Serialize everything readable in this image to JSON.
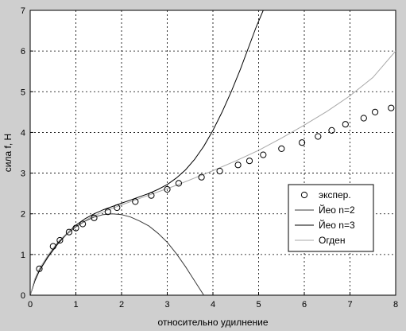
{
  "chart_data": {
    "type": "line",
    "xlabel": "относительно удилнение",
    "ylabel": "сила f, Н",
    "xlim": [
      0,
      8
    ],
    "ylim": [
      0,
      7
    ],
    "xticks": [
      "0",
      "1",
      "2",
      "3",
      "4",
      "5",
      "6",
      "7",
      "8"
    ],
    "yticks": [
      "0",
      "1",
      "2",
      "3",
      "4",
      "5",
      "6",
      "7"
    ],
    "grid": true,
    "legend_position": "lower-right",
    "series": [
      {
        "name": "экспер.",
        "kind": "markers",
        "marker": "circle",
        "color": "#000000",
        "x": [
          0.2,
          0.5,
          0.65,
          0.85,
          1.0,
          1.15,
          1.4,
          1.7,
          1.9,
          2.3,
          2.65,
          3.0,
          3.25,
          3.75,
          4.15,
          4.55,
          4.8,
          5.1,
          5.5,
          5.95,
          6.3,
          6.6,
          6.9,
          7.3,
          7.55,
          7.9
        ],
        "y": [
          0.65,
          1.2,
          1.35,
          1.55,
          1.65,
          1.75,
          1.9,
          2.05,
          2.15,
          2.3,
          2.45,
          2.6,
          2.75,
          2.9,
          3.05,
          3.2,
          3.3,
          3.45,
          3.6,
          3.75,
          3.9,
          4.05,
          4.2,
          4.35,
          4.5,
          4.6
        ]
      },
      {
        "name": "Йео n=2",
        "kind": "line",
        "color": "#3a3a3a",
        "x": [
          0,
          0.1,
          0.2,
          0.4,
          0.6,
          0.8,
          1.0,
          1.2,
          1.4,
          1.6,
          1.8,
          2.0,
          2.2,
          2.4,
          2.6,
          2.8,
          3.0,
          3.2,
          3.4,
          3.6,
          3.8
        ],
        "y": [
          0,
          0.35,
          0.6,
          0.95,
          1.25,
          1.5,
          1.68,
          1.82,
          1.92,
          1.98,
          2.0,
          1.98,
          1.92,
          1.82,
          1.7,
          1.52,
          1.3,
          1.02,
          0.7,
          0.35,
          0.0
        ]
      },
      {
        "name": "Йео n=3",
        "kind": "line",
        "color": "#000000",
        "x": [
          0,
          0.1,
          0.2,
          0.4,
          0.6,
          0.8,
          1.0,
          1.2,
          1.4,
          1.6,
          1.8,
          2.0,
          2.2,
          2.4,
          2.6,
          2.8,
          3.0,
          3.2,
          3.4,
          3.6,
          3.8,
          4.0,
          4.2,
          4.4,
          4.6,
          4.8,
          4.95,
          5.1
        ],
        "y": [
          0,
          0.35,
          0.6,
          0.97,
          1.27,
          1.52,
          1.72,
          1.88,
          2.0,
          2.1,
          2.18,
          2.26,
          2.34,
          2.42,
          2.5,
          2.6,
          2.72,
          2.88,
          3.08,
          3.34,
          3.66,
          4.05,
          4.5,
          5.0,
          5.55,
          6.15,
          6.6,
          7.0
        ]
      },
      {
        "name": "Огден",
        "kind": "line",
        "color": "#a8a8a8",
        "x": [
          0,
          0.1,
          0.2,
          0.4,
          0.6,
          0.8,
          1.0,
          1.3,
          1.6,
          2.0,
          2.4,
          2.8,
          3.2,
          3.6,
          4.0,
          4.5,
          5.0,
          5.5,
          6.0,
          6.5,
          7.0,
          7.5,
          8.0
        ],
        "y": [
          0,
          0.4,
          0.65,
          1.0,
          1.3,
          1.52,
          1.7,
          1.9,
          2.05,
          2.22,
          2.38,
          2.54,
          2.7,
          2.88,
          3.06,
          3.3,
          3.56,
          3.86,
          4.18,
          4.52,
          4.9,
          5.35,
          6.0
        ]
      }
    ]
  }
}
